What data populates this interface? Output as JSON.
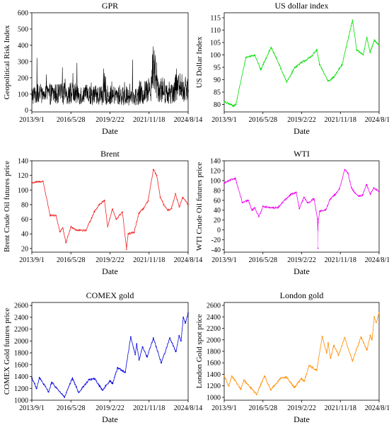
{
  "chart_data": [
    {
      "type": "line",
      "title": "GPR",
      "xlabel": "Date",
      "ylabel": "Geopolitical Risk Index",
      "x_ticks": [
        "2013/9/1",
        "2016/5/28",
        "2019/2/22",
        "2021/11/18",
        "2024/8/14"
      ],
      "x_range": [
        "2013-09-01",
        "2024-08-14"
      ],
      "ylim": [
        -10,
        600
      ],
      "y_ticks": [
        0,
        100,
        200,
        300,
        400,
        500,
        600
      ],
      "color": "#000000",
      "style": "noisy",
      "series": [
        {
          "x": [
            "2013-09-01",
            "2014-06-01",
            "2015-06-01",
            "2016-06-01",
            "2017-06-01",
            "2018-06-01",
            "2019-06-01",
            "2020-06-01",
            "2021-06-01",
            "2022-02-01",
            "2022-03-01",
            "2022-08-01",
            "2023-06-01",
            "2023-10-15",
            "2024-08-14"
          ],
          "values": [
            95,
            100,
            100,
            105,
            95,
            95,
            90,
            85,
            90,
            170,
            300,
            130,
            110,
            150,
            120
          ]
        }
      ]
    },
    {
      "type": "line",
      "title": "US dollar index",
      "xlabel": "Date",
      "ylabel": "US Dollar Index",
      "x_ticks": [
        "2013/9/1",
        "2016/5/28",
        "2019/2/22",
        "2021/11/18",
        "2024/8/14"
      ],
      "x_range": [
        "2013-09-01",
        "2024-08-14"
      ],
      "ylim": [
        77,
        117
      ],
      "y_ticks": [
        80,
        85,
        90,
        95,
        100,
        105,
        110,
        115
      ],
      "color": "#00dd00",
      "style": "line",
      "series": [
        {
          "x": [
            "2013-09-01",
            "2014-05-01",
            "2014-07-01",
            "2015-03-15",
            "2015-11-01",
            "2016-04-01",
            "2016-12-20",
            "2017-05-01",
            "2018-02-01",
            "2018-09-01",
            "2019-03-01",
            "2019-10-01",
            "2020-03-20",
            "2020-06-01",
            "2021-01-05",
            "2021-06-01",
            "2022-01-01",
            "2022-09-28",
            "2023-01-15",
            "2023-07-01",
            "2023-10-01",
            "2023-12-28",
            "2024-04-15",
            "2024-08-14"
          ],
          "values": [
            81,
            79.5,
            80,
            99,
            100,
            94,
            103,
            99,
            89,
            95,
            97,
            99,
            102,
            96,
            89.5,
            91,
            96,
            114,
            102,
            100,
            107,
            101,
            106,
            104
          ]
        }
      ]
    },
    {
      "type": "line",
      "title": "Brent",
      "xlabel": "Date",
      "ylabel": "Brent Crude Oil futures price",
      "x_ticks": [
        "2013/9/1",
        "2016/5/28",
        "2019/2/22",
        "2021/11/18",
        "2024/8/14"
      ],
      "x_range": [
        "2013-09-01",
        "2024-08-14"
      ],
      "ylim": [
        15,
        140
      ],
      "y_ticks": [
        20,
        40,
        60,
        80,
        100,
        120,
        140
      ],
      "color": "#ee2222",
      "style": "line",
      "series": [
        {
          "x": [
            "2013-09-01",
            "2014-06-15",
            "2014-12-15",
            "2015-05-15",
            "2015-08-20",
            "2015-11-01",
            "2016-01-20",
            "2016-06-01",
            "2016-11-01",
            "2017-06-20",
            "2018-01-15",
            "2018-05-20",
            "2018-10-05",
            "2018-12-25",
            "2019-04-25",
            "2019-08-01",
            "2020-01-06",
            "2020-04-21",
            "2020-06-01",
            "2020-11-01",
            "2021-03-01",
            "2021-07-01",
            "2021-10-25",
            "2022-03-08",
            "2022-06-01",
            "2022-09-01",
            "2022-12-01",
            "2023-03-15",
            "2023-06-15",
            "2023-09-25",
            "2024-01-01",
            "2024-04-01",
            "2024-08-14"
          ],
          "values": [
            110,
            112,
            65,
            65,
            43,
            48,
            28,
            50,
            45,
            45,
            70,
            80,
            86,
            50,
            74,
            60,
            70,
            19,
            40,
            42,
            68,
            75,
            85,
            128,
            120,
            90,
            80,
            72,
            75,
            95,
            77,
            90,
            80
          ]
        }
      ]
    },
    {
      "type": "line",
      "title": "WTI",
      "xlabel": "Date",
      "ylabel": "WTI Crude Oil futures price",
      "x_ticks": [
        "2013/9/1",
        "2016/5/28",
        "2019/2/22",
        "2021/11/18",
        "2024/8/14"
      ],
      "x_range": [
        "2013-09-01",
        "2024-08-14"
      ],
      "ylim": [
        -45,
        140
      ],
      "y_ticks": [
        -40,
        -20,
        0,
        20,
        40,
        60,
        80,
        100,
        120,
        140
      ],
      "color": "#ee00ee",
      "style": "line",
      "series": [
        {
          "x": [
            "2013-09-01",
            "2014-06-15",
            "2014-12-15",
            "2015-05-15",
            "2015-08-20",
            "2015-11-01",
            "2016-02-11",
            "2016-06-01",
            "2016-11-01",
            "2017-06-20",
            "2018-01-15",
            "2018-05-20",
            "2018-10-03",
            "2018-12-24",
            "2019-04-25",
            "2019-08-01",
            "2020-01-06",
            "2020-04-10",
            "2020-04-20",
            "2020-04-22",
            "2020-06-01",
            "2020-11-01",
            "2021-03-01",
            "2021-07-01",
            "2021-10-25",
            "2022-03-08",
            "2022-06-01",
            "2022-09-01",
            "2022-12-01",
            "2023-03-15",
            "2023-06-15",
            "2023-09-25",
            "2024-01-01",
            "2024-04-01",
            "2024-08-14"
          ],
          "values": [
            95,
            105,
            55,
            60,
            40,
            45,
            27,
            48,
            45,
            45,
            63,
            72,
            76,
            43,
            66,
            55,
            63,
            22,
            -37,
            15,
            38,
            40,
            62,
            72,
            83,
            122,
            115,
            85,
            75,
            68,
            70,
            92,
            72,
            85,
            78
          ]
        }
      ]
    },
    {
      "type": "line",
      "title": "COMEX gold",
      "xlabel": "Date",
      "ylabel": "COMEX Gold futures price",
      "x_ticks": [
        "2013/9/1",
        "2016/5/28",
        "2019/2/22",
        "2021/11/18",
        "2024/8/14"
      ],
      "x_range": [
        "2013-09-01",
        "2024-08-14"
      ],
      "ylim": [
        1000,
        2650
      ],
      "y_ticks": [
        1000,
        1200,
        1400,
        1600,
        1800,
        2000,
        2200,
        2400,
        2600
      ],
      "color": "#0000dd",
      "style": "line",
      "series": [
        {
          "x": [
            "2013-09-01",
            "2013-12-31",
            "2014-03-15",
            "2014-11-05",
            "2015-01-22",
            "2015-12-17",
            "2016-07-06",
            "2016-12-15",
            "2017-09-08",
            "2018-01-25",
            "2018-08-16",
            "2019-02-20",
            "2019-05-01",
            "2019-09-04",
            "2020-03-19",
            "2020-08-06",
            "2020-11-30",
            "2021-01-06",
            "2021-03-08",
            "2021-06-01",
            "2021-09-30",
            "2022-03-08",
            "2022-09-28",
            "2023-05-04",
            "2023-10-05",
            "2023-12-28",
            "2024-02-14",
            "2024-04-12",
            "2024-06-01",
            "2024-08-14"
          ],
          "values": [
            1380,
            1200,
            1380,
            1140,
            1300,
            1050,
            1370,
            1130,
            1350,
            1360,
            1170,
            1330,
            1280,
            1550,
            1470,
            2070,
            1770,
            1950,
            1680,
            1900,
            1730,
            2050,
            1630,
            2050,
            1820,
            2090,
            2000,
            2400,
            2300,
            2470
          ]
        }
      ]
    },
    {
      "type": "line",
      "title": "London gold",
      "xlabel": "Date",
      "ylabel": "London Gold spot price",
      "x_ticks": [
        "2013/9/1",
        "2016/5/28",
        "2019/2/22",
        "2021/11/18",
        "2024/8/14"
      ],
      "x_range": [
        "2013-09-01",
        "2024-08-14"
      ],
      "ylim": [
        950,
        2650
      ],
      "y_ticks": [
        1000,
        1200,
        1400,
        1600,
        1800,
        2000,
        2200,
        2400,
        2600
      ],
      "color": "#ff8c00",
      "style": "line",
      "series": [
        {
          "x": [
            "2013-09-01",
            "2013-12-31",
            "2014-03-15",
            "2014-11-05",
            "2015-01-22",
            "2015-12-17",
            "2016-07-06",
            "2016-12-15",
            "2017-09-08",
            "2018-01-25",
            "2018-08-16",
            "2019-02-20",
            "2019-05-01",
            "2019-09-04",
            "2020-03-19",
            "2020-08-06",
            "2020-11-30",
            "2021-01-06",
            "2021-03-08",
            "2021-06-01",
            "2021-09-30",
            "2022-03-08",
            "2022-09-28",
            "2023-05-04",
            "2023-10-05",
            "2023-12-28",
            "2024-02-14",
            "2024-04-12",
            "2024-06-01",
            "2024-08-14"
          ],
          "values": [
            1370,
            1200,
            1370,
            1140,
            1300,
            1050,
            1370,
            1130,
            1340,
            1350,
            1170,
            1330,
            1280,
            1550,
            1470,
            2060,
            1770,
            1950,
            1680,
            1900,
            1730,
            2040,
            1630,
            2050,
            1820,
            2080,
            2000,
            2400,
            2300,
            2480
          ]
        }
      ]
    }
  ]
}
